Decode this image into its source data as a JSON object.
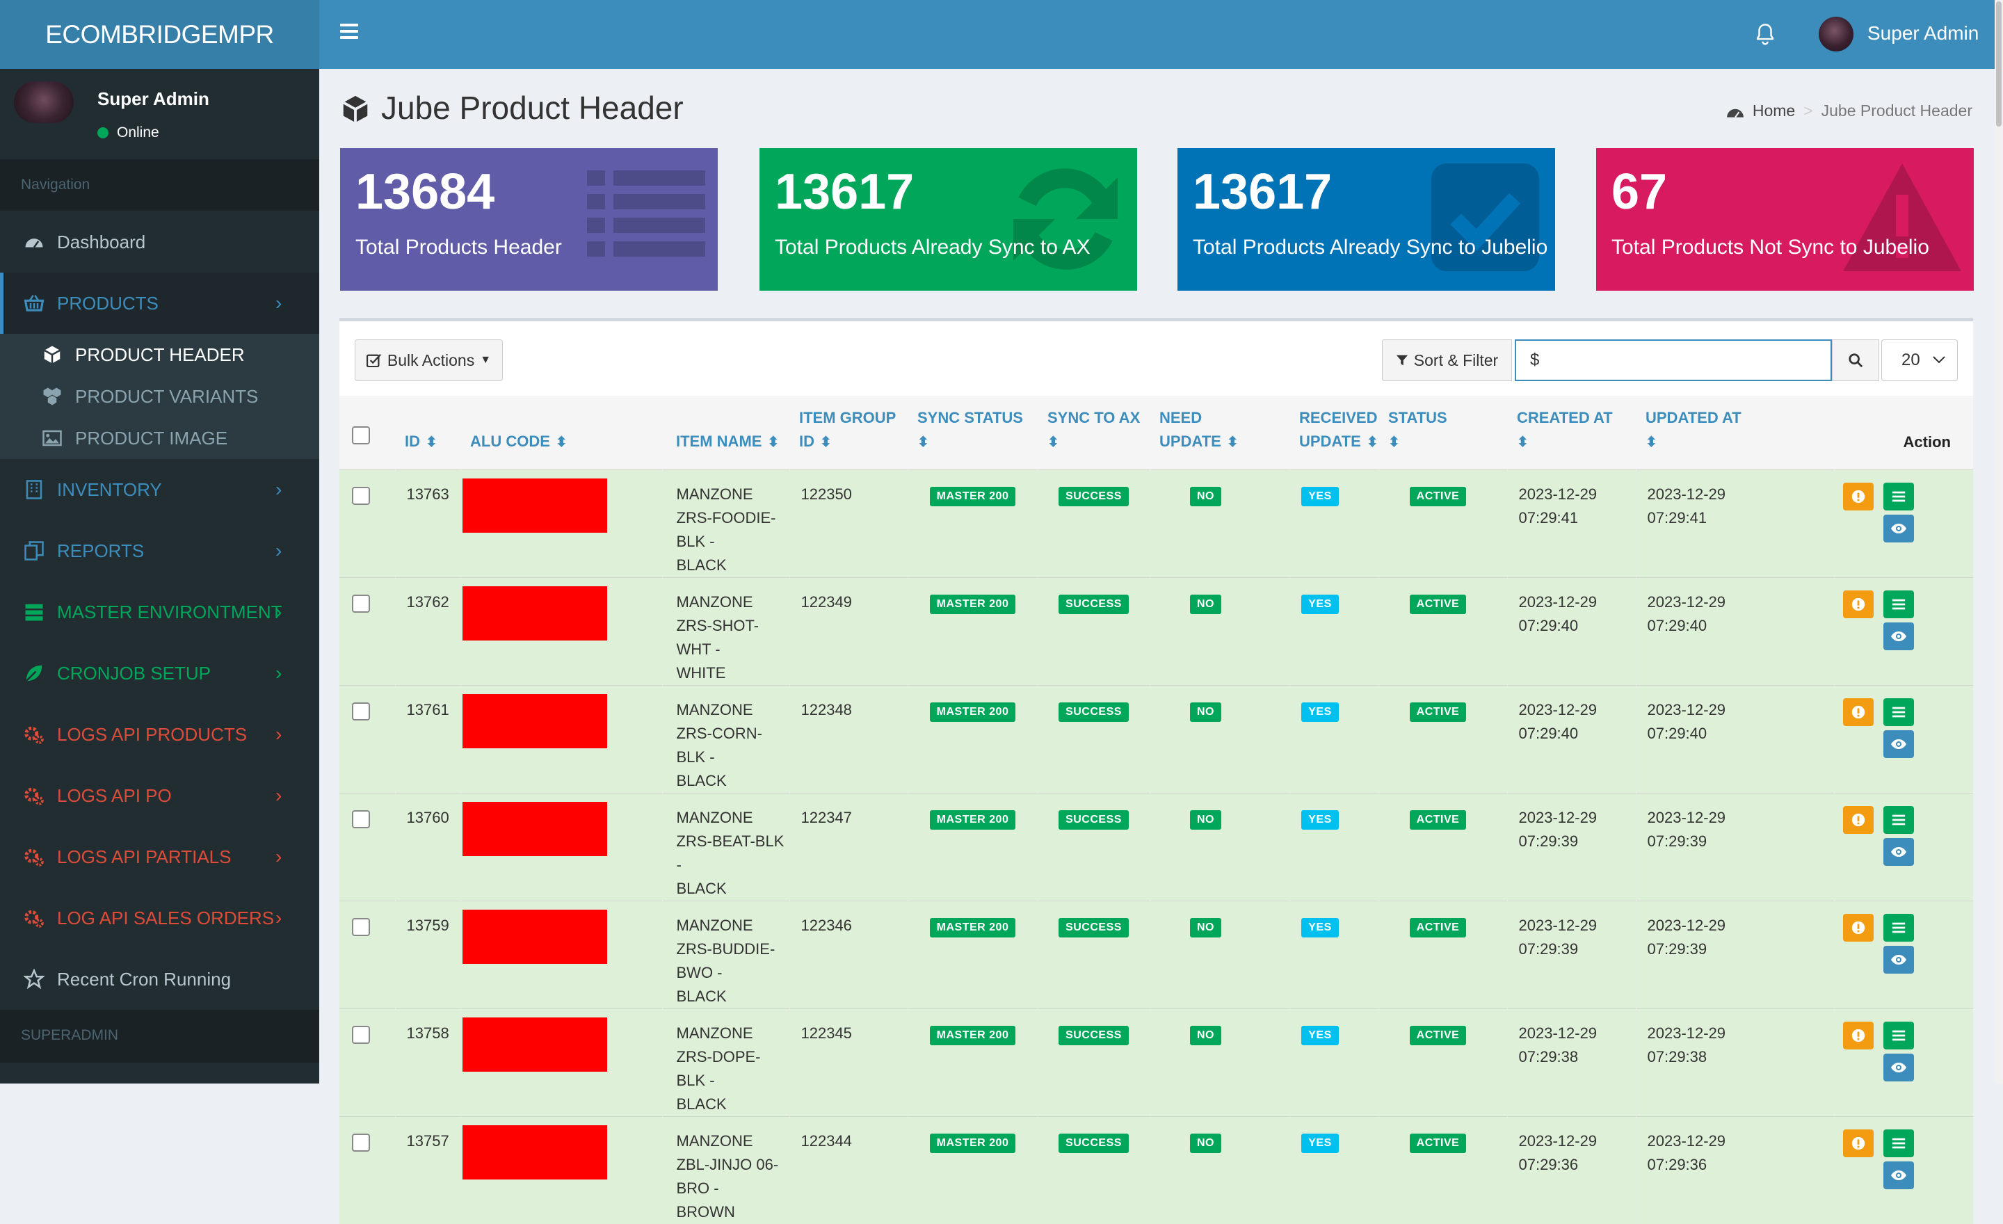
{
  "app": {
    "brand": "ECOMBRIDGEMPR"
  },
  "topbar": {
    "user_name": "Super Admin"
  },
  "sidebar": {
    "user": {
      "name": "Super Admin",
      "status": "Online"
    },
    "nav_header": "Navigation",
    "items": [
      {
        "label": "Dashboard",
        "icon": "dashboard-icon",
        "color": "#b8c7ce"
      },
      {
        "label": "PRODUCTS",
        "icon": "basket-icon",
        "color": "#3c8dbc"
      },
      {
        "label": "INVENTORY",
        "icon": "building-icon",
        "color": "#3c8dbc"
      },
      {
        "label": "REPORTS",
        "icon": "copy-icon",
        "color": "#3c8dbc"
      },
      {
        "label": "MASTER ENVIRONTMENT",
        "icon": "server-icon",
        "color": "#00a65a"
      },
      {
        "label": "CRONJOB SETUP",
        "icon": "leaf-icon",
        "color": "#00a65a"
      },
      {
        "label": "LOGS API PRODUCTS",
        "icon": "gears-icon",
        "color": "#dd4b39"
      },
      {
        "label": "LOGS API PO",
        "icon": "gears-icon",
        "color": "#dd4b39"
      },
      {
        "label": "LOGS API PARTIALS",
        "icon": "gears-icon",
        "color": "#dd4b39"
      },
      {
        "label": "LOG API SALES ORDERS",
        "icon": "gears-icon",
        "color": "#dd4b39"
      },
      {
        "label": "Recent Cron Running",
        "icon": "star-icon",
        "color": "#b8c7ce"
      }
    ],
    "products_submenu": [
      {
        "label": "PRODUCT HEADER",
        "icon": "cube-icon"
      },
      {
        "label": "PRODUCT VARIANTS",
        "icon": "cubes-icon"
      },
      {
        "label": "PRODUCT IMAGE",
        "icon": "image-icon"
      }
    ],
    "section_header": "SUPERADMIN"
  },
  "page": {
    "title": "Jube Product Header",
    "breadcrumb": {
      "home": "Home",
      "current": "Jube Product Header"
    }
  },
  "stats": [
    {
      "value": "13684",
      "label": "Total Products Header",
      "color": "#605ca8",
      "icon": "list-icon"
    },
    {
      "value": "13617",
      "label": "Total Products Already Sync to AX",
      "color": "#00a65a",
      "icon": "refresh-icon"
    },
    {
      "value": "13617",
      "label": "Total Products Already Sync to Jubelio",
      "color": "#0073b7",
      "icon": "check-square-icon"
    },
    {
      "value": "67",
      "label": "Total Products Not Sync to Jubelio",
      "color": "#d81b60",
      "icon": "warning-icon"
    }
  ],
  "toolbar": {
    "bulk_actions": "Bulk Actions",
    "sort_filter": "Sort & Filter",
    "search_value": "$",
    "page_size": "20"
  },
  "table": {
    "columns": [
      {
        "line1": "ID",
        "line2": ""
      },
      {
        "line1": "ALU CODE",
        "line2": ""
      },
      {
        "line1": "ITEM NAME",
        "line2": ""
      },
      {
        "line1": "ITEM GROUP",
        "line2": "ID"
      },
      {
        "line1": "SYNC STATUS",
        "line2": ""
      },
      {
        "line1": "SYNC TO AX",
        "line2": ""
      },
      {
        "line1": "NEED",
        "line2": "UPDATE"
      },
      {
        "line1": "RECEIVED",
        "line2": "UPDATE"
      },
      {
        "line1": "STATUS",
        "line2": ""
      },
      {
        "line1": "CREATED AT",
        "line2": ""
      },
      {
        "line1": "UPDATED AT",
        "line2": ""
      }
    ],
    "action_header": "Action",
    "rows": [
      {
        "id": "13763",
        "name1": "MANZONE ZRS-FOODIE-BLK -",
        "name2": "BLACK",
        "group": "122350",
        "sync_status": "MASTER 200",
        "sync_ax": "SUCCESS",
        "need_update": "NO",
        "received_update": "YES",
        "status": "ACTIVE",
        "created_date": "2023-12-29",
        "created_time": "07:29:41",
        "updated_date": "2023-12-29",
        "updated_time": "07:29:41"
      },
      {
        "id": "13762",
        "name1": "MANZONE ZRS-SHOT-WHT -",
        "name2": "WHITE",
        "group": "122349",
        "sync_status": "MASTER 200",
        "sync_ax": "SUCCESS",
        "need_update": "NO",
        "received_update": "YES",
        "status": "ACTIVE",
        "created_date": "2023-12-29",
        "created_time": "07:29:40",
        "updated_date": "2023-12-29",
        "updated_time": "07:29:40"
      },
      {
        "id": "13761",
        "name1": "MANZONE ZRS-CORN-BLK -",
        "name2": "BLACK",
        "group": "122348",
        "sync_status": "MASTER 200",
        "sync_ax": "SUCCESS",
        "need_update": "NO",
        "received_update": "YES",
        "status": "ACTIVE",
        "created_date": "2023-12-29",
        "created_time": "07:29:40",
        "updated_date": "2023-12-29",
        "updated_time": "07:29:40"
      },
      {
        "id": "13760",
        "name1": "MANZONE ZRS-BEAT-BLK -",
        "name2": "BLACK",
        "group": "122347",
        "sync_status": "MASTER 200",
        "sync_ax": "SUCCESS",
        "need_update": "NO",
        "received_update": "YES",
        "status": "ACTIVE",
        "created_date": "2023-12-29",
        "created_time": "07:29:39",
        "updated_date": "2023-12-29",
        "updated_time": "07:29:39"
      },
      {
        "id": "13759",
        "name1": "MANZONE ZRS-BUDDIE-BWO -",
        "name2": "BLACK",
        "group": "122346",
        "sync_status": "MASTER 200",
        "sync_ax": "SUCCESS",
        "need_update": "NO",
        "received_update": "YES",
        "status": "ACTIVE",
        "created_date": "2023-12-29",
        "created_time": "07:29:39",
        "updated_date": "2023-12-29",
        "updated_time": "07:29:39"
      },
      {
        "id": "13758",
        "name1": "MANZONE ZRS-DOPE-BLK -",
        "name2": "BLACK",
        "group": "122345",
        "sync_status": "MASTER 200",
        "sync_ax": "SUCCESS",
        "need_update": "NO",
        "received_update": "YES",
        "status": "ACTIVE",
        "created_date": "2023-12-29",
        "created_time": "07:29:38",
        "updated_date": "2023-12-29",
        "updated_time": "07:29:38"
      },
      {
        "id": "13757",
        "name1": "MANZONE ZBL-JINJO 06-BRO -",
        "name2": "BROWN",
        "group": "122344",
        "sync_status": "MASTER 200",
        "sync_ax": "SUCCESS",
        "need_update": "NO",
        "received_update": "YES",
        "status": "ACTIVE",
        "created_date": "2023-12-29",
        "created_time": "07:29:36",
        "updated_date": "2023-12-29",
        "updated_time": "07:29:36"
      }
    ]
  }
}
